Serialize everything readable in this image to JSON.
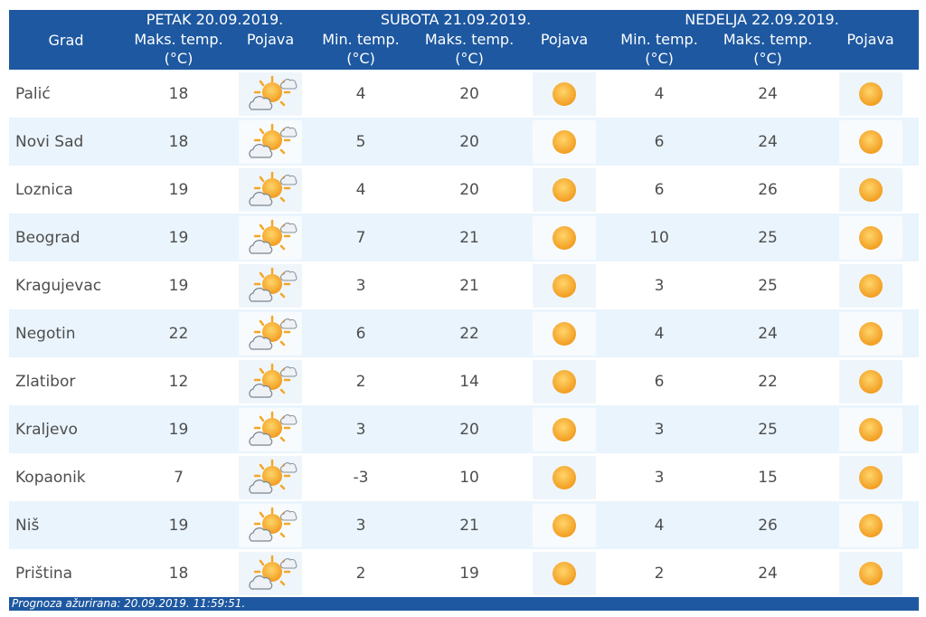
{
  "header": {
    "grad": "Grad",
    "day1": "PETAK 20.09.2019.",
    "day2": "SUBOTA 21.09.2019.",
    "day3": "NEDELJA 22.09.2019.",
    "min_label": "Min. temp.",
    "max_label": "Maks. temp.",
    "unit": "(°C)",
    "phenomenon": "Pojava"
  },
  "icons": {
    "day1": "partly-cloudy-icon",
    "day2": "sun-icon",
    "day3": "sun-icon"
  },
  "rows": [
    {
      "city": "Palić",
      "d1_max": "18",
      "d2_min": "4",
      "d2_max": "20",
      "d3_min": "4",
      "d3_max": "24"
    },
    {
      "city": "Novi Sad",
      "d1_max": "18",
      "d2_min": "5",
      "d2_max": "20",
      "d3_min": "6",
      "d3_max": "24"
    },
    {
      "city": "Loznica",
      "d1_max": "19",
      "d2_min": "4",
      "d2_max": "20",
      "d3_min": "6",
      "d3_max": "26"
    },
    {
      "city": "Beograd",
      "d1_max": "19",
      "d2_min": "7",
      "d2_max": "21",
      "d3_min": "10",
      "d3_max": "25"
    },
    {
      "city": "Kragujevac",
      "d1_max": "19",
      "d2_min": "3",
      "d2_max": "21",
      "d3_min": "3",
      "d3_max": "25"
    },
    {
      "city": "Negotin",
      "d1_max": "22",
      "d2_min": "6",
      "d2_max": "22",
      "d3_min": "4",
      "d3_max": "24"
    },
    {
      "city": "Zlatibor",
      "d1_max": "12",
      "d2_min": "2",
      "d2_max": "14",
      "d3_min": "6",
      "d3_max": "22"
    },
    {
      "city": "Kraljevo",
      "d1_max": "19",
      "d2_min": "3",
      "d2_max": "20",
      "d3_min": "3",
      "d3_max": "25"
    },
    {
      "city": "Kopaonik",
      "d1_max": "7",
      "d2_min": "-3",
      "d2_max": "10",
      "d3_min": "3",
      "d3_max": "15"
    },
    {
      "city": "Niš",
      "d1_max": "19",
      "d2_min": "3",
      "d2_max": "21",
      "d3_min": "4",
      "d3_max": "26"
    },
    {
      "city": "Priština",
      "d1_max": "18",
      "d2_min": "2",
      "d2_max": "19",
      "d3_min": "2",
      "d3_max": "24"
    }
  ],
  "footer": {
    "text": "Prognoza ažurirana:  20.09.2019. 11:59:51."
  },
  "colors": {
    "header_bg": "#1d58a0",
    "row_alt": "#e9f4fc",
    "sun": "#f5a623"
  }
}
